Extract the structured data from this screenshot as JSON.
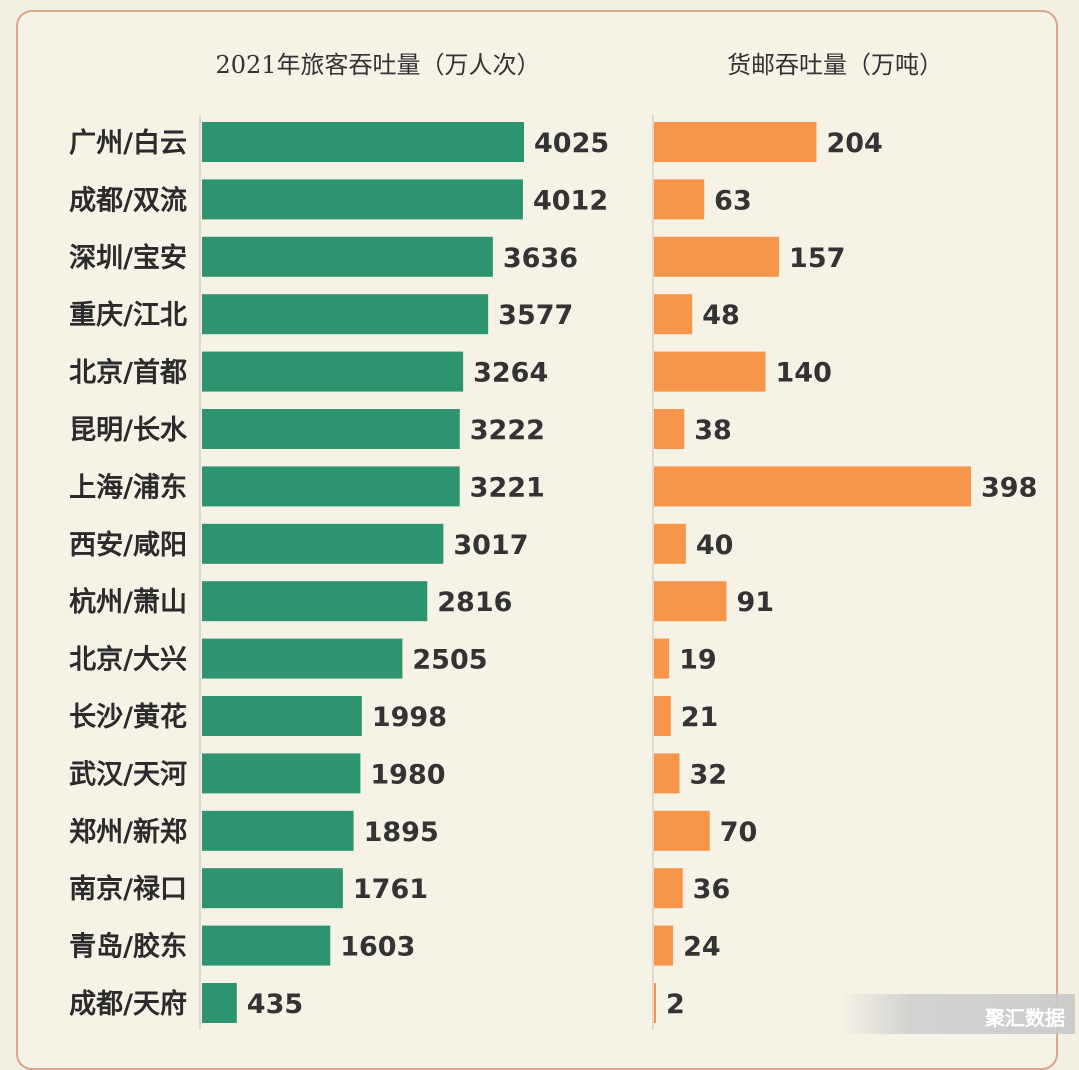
{
  "chart_data": {
    "type": "bar",
    "orientation": "horizontal",
    "categories": [
      "广州/白云",
      "成都/双流",
      "深圳/宝安",
      "重庆/江北",
      "北京/首都",
      "昆明/长水",
      "上海/浦东",
      "西安/咸阳",
      "杭州/萧山",
      "北京/大兴",
      "长沙/黄花",
      "武汉/天河",
      "郑州/新郑",
      "南京/禄口",
      "青岛/胶东",
      "成都/天府"
    ],
    "panels": [
      {
        "title": "2021年旅客吞吐量（万人次）",
        "color": "#2e9470",
        "values": [
          4025,
          4012,
          3636,
          3577,
          3264,
          3222,
          3221,
          3017,
          2816,
          2505,
          1998,
          1980,
          1895,
          1761,
          1603,
          435
        ],
        "xlim": [
          0,
          4025
        ]
      },
      {
        "title": "货邮吞吐量（万吨）",
        "color": "#f7964a",
        "values": [
          204,
          63,
          157,
          48,
          140,
          38,
          398,
          40,
          91,
          19,
          21,
          32,
          70,
          36,
          24,
          2
        ],
        "xlim": [
          0,
          398
        ]
      }
    ],
    "grid": false,
    "legend": "none"
  },
  "watermark": {
    "text": "聚汇数据"
  }
}
